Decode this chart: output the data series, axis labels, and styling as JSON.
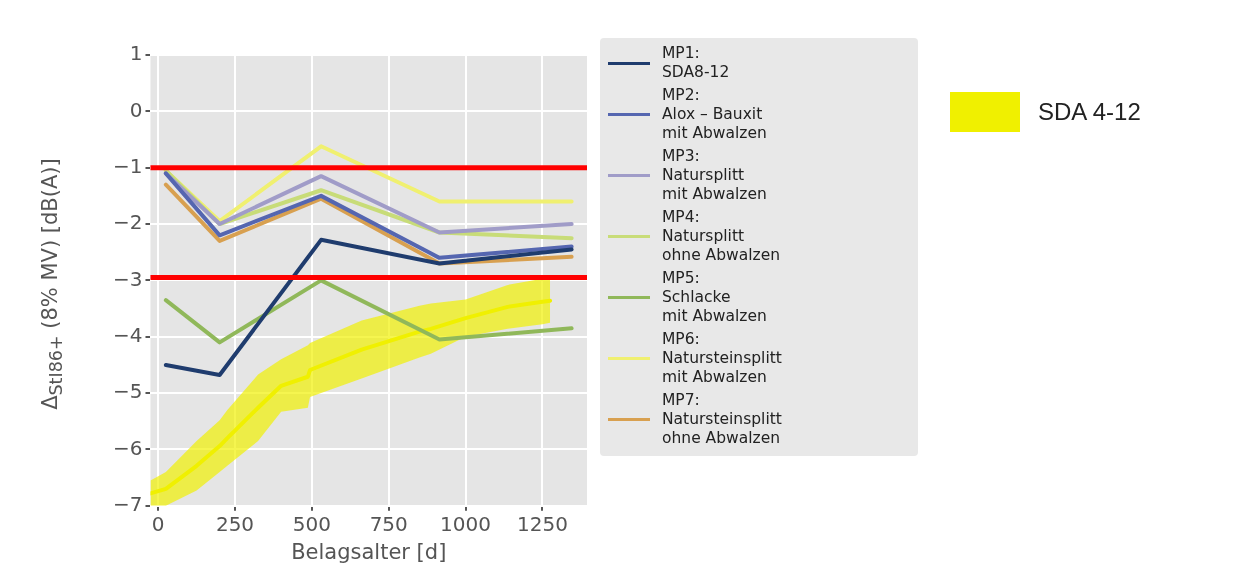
{
  "chart_data": {
    "type": "line",
    "xlabel": "Belagsalter [d]",
    "ylabel": "Δ$_{StI86+}$ (8% MV) [dB(A)]",
    "xlim": [
      -25,
      1395
    ],
    "xticks": [
      0,
      250,
      500,
      750,
      1000,
      1250
    ],
    "ylim": [
      -7,
      1
    ],
    "yticks": [
      -7,
      -6,
      -5,
      -4,
      -3,
      -2,
      -1,
      0,
      1
    ],
    "grid": true,
    "legend": "right",
    "marker": "none",
    "line_style": "solid",
    "x": [
      25,
      200,
      530,
      915,
      1345
    ],
    "series": [
      {
        "name": "SDA 4-12",
        "type": "line",
        "color": "#f0f000",
        "x": [
          -25,
          25,
          125,
          200,
          225,
          325,
          400,
          487,
          494,
          662,
          850,
          887,
          1000,
          1137,
          1250,
          1275
        ],
        "values": [
          -6.78,
          -6.7,
          -6.29,
          -5.94,
          -5.8,
          -5.26,
          -4.87,
          -4.71,
          -4.59,
          -4.23,
          -3.91,
          -3.86,
          -3.67,
          -3.47,
          -3.38,
          -3.36
        ],
        "lower": [
          -7,
          -7,
          -6.73,
          -6.4,
          -6.29,
          -5.85,
          -5.33,
          -5.26,
          -5.07,
          -4.74,
          -4.37,
          -4.3,
          -4.0,
          -3.86,
          -3.78,
          -3.75
        ],
        "upper": [
          -6.55,
          -6.4,
          -5.85,
          -5.48,
          -5.3,
          -4.67,
          -4.4,
          -4.15,
          -4.11,
          -3.71,
          -3.45,
          -3.41,
          -3.34,
          -3.08,
          -2.97,
          -2.97
        ]
      },
      {
        "name": "MP1:\nSDA8-12",
        "color": "#1f3c6e",
        "values": [
          -4.5,
          -4.68,
          -2.28,
          -2.7,
          -2.45
        ]
      },
      {
        "name": "MP2:\nAlox – Bauxit\nmit Abwalzen",
        "color": "#5566b0",
        "values": [
          -1.1,
          -2.2,
          -1.5,
          -2.6,
          -2.4
        ]
      },
      {
        "name": "MP3:\nNatursplitt\nmit Abwalzen",
        "color": "#a09cc8",
        "values": [
          -1.1,
          -2.0,
          -1.15,
          -2.15,
          -2.0
        ]
      },
      {
        "name": "MP4:\nNatursplitt\nohne Abwalzen",
        "color": "#c8dc78",
        "values": [
          -1.05,
          -2.0,
          -1.4,
          -2.15,
          -2.25
        ]
      },
      {
        "name": "MP5:\nSchlacke\nmit Abwalzen",
        "color": "#90b85a",
        "values": [
          -3.35,
          -4.1,
          -3.0,
          -4.05,
          -3.85
        ]
      },
      {
        "name": "MP6:\nNatursteinsplitt\nmit Abwalzen",
        "color": "#f0f070",
        "values": [
          -1.05,
          -1.95,
          -0.62,
          -1.6,
          -1.6
        ]
      },
      {
        "name": "MP7:\nNatursteinsplitt\nohne Abwalzen",
        "color": "#d8a050",
        "values": [
          -1.3,
          -2.3,
          -1.55,
          -2.7,
          -2.58
        ]
      }
    ],
    "ref_lines": [
      {
        "axis": "y",
        "value": -1,
        "color": "#ff0000"
      },
      {
        "axis": "y",
        "value": -2.95,
        "color": "#ff0000"
      }
    ]
  }
}
